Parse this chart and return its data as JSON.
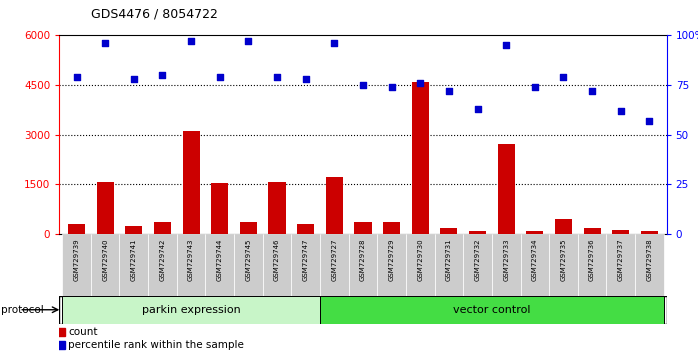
{
  "title": "GDS4476 / 8054722",
  "samples": [
    "GSM729739",
    "GSM729740",
    "GSM729741",
    "GSM729742",
    "GSM729743",
    "GSM729744",
    "GSM729745",
    "GSM729746",
    "GSM729747",
    "GSM729727",
    "GSM729728",
    "GSM729729",
    "GSM729730",
    "GSM729731",
    "GSM729732",
    "GSM729733",
    "GSM729734",
    "GSM729735",
    "GSM729736",
    "GSM729737",
    "GSM729738"
  ],
  "counts": [
    300,
    1550,
    220,
    350,
    3100,
    1520,
    350,
    1550,
    280,
    1700,
    350,
    350,
    4600,
    180,
    80,
    2700,
    90,
    430,
    180,
    100,
    90
  ],
  "percentiles": [
    79,
    96,
    78,
    80,
    97,
    79,
    97,
    79,
    78,
    96,
    75,
    74,
    76,
    72,
    63,
    95,
    74,
    79,
    72,
    62,
    57
  ],
  "groups": [
    {
      "label": "parkin expression",
      "start": 0,
      "end": 9,
      "color": "#c8f5c8"
    },
    {
      "label": "vector control",
      "start": 9,
      "end": 21,
      "color": "#44dd44"
    }
  ],
  "ylim_left": [
    0,
    6000
  ],
  "ylim_right": [
    0,
    100
  ],
  "yticks_left": [
    0,
    1500,
    3000,
    4500,
    6000
  ],
  "yticks_right": [
    0,
    25,
    50,
    75,
    100
  ],
  "bar_color": "#cc0000",
  "dot_color": "#0000cc",
  "grid_color": "#000000",
  "plot_bg": "#ffffff",
  "label_bg": "#cccccc",
  "protocol_label": "protocol",
  "legend_count_label": "count",
  "legend_pct_label": "percentile rank within the sample"
}
